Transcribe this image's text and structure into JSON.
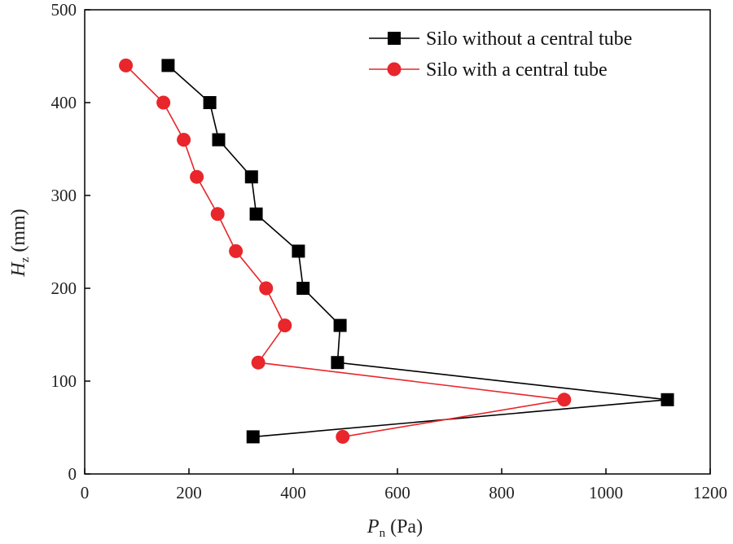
{
  "chart_data": {
    "type": "line",
    "title": "",
    "xlabel": {
      "main": "P",
      "sub": "n",
      "unit": "(Pa)"
    },
    "ylabel": {
      "main": "H",
      "sub": "z",
      "unit": "(mm)"
    },
    "xlim": [
      0,
      1200
    ],
    "ylim": [
      0,
      500
    ],
    "xticks": [
      0,
      200,
      400,
      600,
      800,
      1000,
      1200
    ],
    "yticks": [
      0,
      100,
      200,
      300,
      400,
      500
    ],
    "legend_position": "top-right",
    "grid": false,
    "series": [
      {
        "name": "Silo without a central tube",
        "color": "#000000",
        "marker": "square",
        "points": [
          {
            "x": 160,
            "y": 440
          },
          {
            "x": 240,
            "y": 400
          },
          {
            "x": 257,
            "y": 360
          },
          {
            "x": 320,
            "y": 320
          },
          {
            "x": 329,
            "y": 280
          },
          {
            "x": 410,
            "y": 240
          },
          {
            "x": 419,
            "y": 200
          },
          {
            "x": 490,
            "y": 160
          },
          {
            "x": 485,
            "y": 120
          },
          {
            "x": 1118,
            "y": 80
          },
          {
            "x": 323,
            "y": 40
          }
        ]
      },
      {
        "name": "Silo with a central tube",
        "color": "#e8262b",
        "marker": "circle",
        "points": [
          {
            "x": 79,
            "y": 440
          },
          {
            "x": 151,
            "y": 400
          },
          {
            "x": 190,
            "y": 360
          },
          {
            "x": 215,
            "y": 320
          },
          {
            "x": 255,
            "y": 280
          },
          {
            "x": 290,
            "y": 240
          },
          {
            "x": 348,
            "y": 200
          },
          {
            "x": 384,
            "y": 160
          },
          {
            "x": 333,
            "y": 120
          },
          {
            "x": 920,
            "y": 80
          },
          {
            "x": 495,
            "y": 40
          }
        ]
      }
    ]
  }
}
